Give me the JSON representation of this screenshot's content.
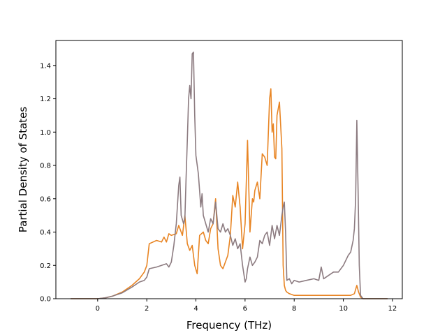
{
  "chart_data": {
    "type": "line",
    "title": "",
    "xlabel": "Frequency (THz)",
    "ylabel": "Partial Density of States",
    "xlim": [
      -1.7,
      12.4
    ],
    "ylim": [
      0,
      1.55
    ],
    "xticks": [
      0,
      2,
      4,
      6,
      8,
      10,
      12
    ],
    "yticks": [
      0.0,
      0.2,
      0.4,
      0.6,
      0.8,
      1.0,
      1.2,
      1.4
    ],
    "xtick_labels": [
      "0",
      "2",
      "4",
      "6",
      "8",
      "10",
      "12"
    ],
    "ytick_labels": [
      "0.0",
      "0.2",
      "0.4",
      "0.6",
      "0.8",
      "1.0",
      "1.2",
      "1.4"
    ],
    "grid": false,
    "legend": null,
    "series": [
      {
        "color": "#e88524",
        "x": [
          -1.1,
          0,
          0.3,
          0.6,
          1.0,
          1.4,
          1.7,
          1.9,
          2.0,
          2.1,
          2.4,
          2.6,
          2.7,
          2.8,
          2.9,
          3.0,
          3.2,
          3.3,
          3.45,
          3.55,
          3.65,
          3.75,
          3.85,
          3.95,
          4.05,
          4.15,
          4.3,
          4.4,
          4.5,
          4.6,
          4.7,
          4.8,
          4.9,
          5.0,
          5.1,
          5.3,
          5.4,
          5.5,
          5.6,
          5.7,
          5.8,
          5.9,
          6.0,
          6.1,
          6.2,
          6.3,
          6.35,
          6.4,
          6.5,
          6.6,
          6.7,
          6.8,
          6.9,
          7.0,
          7.05,
          7.1,
          7.15,
          7.2,
          7.25,
          7.3,
          7.4,
          7.5,
          7.55,
          7.6,
          7.65,
          7.7,
          7.8,
          7.9,
          8.0,
          8.1,
          8.5,
          9.0,
          9.5,
          10.0,
          10.3,
          10.45,
          10.55,
          10.62,
          10.7,
          10.8,
          11.8
        ],
        "y": [
          0.0,
          0.0,
          0.005,
          0.015,
          0.04,
          0.08,
          0.12,
          0.16,
          0.2,
          0.33,
          0.35,
          0.34,
          0.37,
          0.34,
          0.39,
          0.38,
          0.39,
          0.44,
          0.38,
          0.5,
          0.33,
          0.29,
          0.32,
          0.2,
          0.15,
          0.38,
          0.4,
          0.35,
          0.33,
          0.42,
          0.45,
          0.6,
          0.3,
          0.2,
          0.18,
          0.26,
          0.38,
          0.62,
          0.55,
          0.7,
          0.55,
          0.3,
          0.45,
          0.95,
          0.4,
          0.6,
          0.58,
          0.65,
          0.7,
          0.6,
          0.87,
          0.85,
          0.8,
          1.2,
          1.26,
          1.0,
          1.05,
          0.85,
          0.84,
          1.1,
          1.18,
          0.9,
          0.2,
          0.08,
          0.05,
          0.04,
          0.03,
          0.025,
          0.02,
          0.02,
          0.02,
          0.02,
          0.02,
          0.02,
          0.02,
          0.03,
          0.08,
          0.04,
          0.01,
          0.0,
          0.0
        ]
      },
      {
        "color": "#8c7b80",
        "x": [
          -1.1,
          0,
          0.3,
          0.6,
          1.0,
          1.4,
          1.7,
          1.9,
          2.0,
          2.1,
          2.4,
          2.6,
          2.8,
          2.9,
          3.0,
          3.1,
          3.2,
          3.3,
          3.35,
          3.4,
          3.5,
          3.55,
          3.6,
          3.65,
          3.7,
          3.75,
          3.8,
          3.85,
          3.9,
          3.95,
          4.0,
          4.1,
          4.2,
          4.25,
          4.3,
          4.4,
          4.5,
          4.6,
          4.7,
          4.8,
          4.9,
          5.0,
          5.1,
          5.2,
          5.3,
          5.4,
          5.5,
          5.6,
          5.7,
          5.8,
          5.9,
          6.0,
          6.05,
          6.1,
          6.2,
          6.3,
          6.4,
          6.5,
          6.6,
          6.7,
          6.8,
          6.9,
          7.0,
          7.1,
          7.2,
          7.3,
          7.4,
          7.5,
          7.55,
          7.6,
          7.65,
          7.7,
          7.8,
          7.9,
          8.0,
          8.2,
          8.5,
          8.8,
          9.0,
          9.1,
          9.2,
          9.4,
          9.6,
          9.8,
          10.0,
          10.2,
          10.3,
          10.4,
          10.45,
          10.5,
          10.55,
          10.6,
          10.65,
          10.7,
          10.8,
          11.8
        ],
        "y": [
          0.0,
          0.0,
          0.005,
          0.015,
          0.035,
          0.07,
          0.1,
          0.11,
          0.13,
          0.18,
          0.19,
          0.2,
          0.21,
          0.19,
          0.22,
          0.32,
          0.45,
          0.68,
          0.73,
          0.5,
          0.45,
          0.48,
          0.72,
          0.95,
          1.2,
          1.28,
          1.2,
          1.47,
          1.48,
          1.1,
          0.86,
          0.75,
          0.55,
          0.63,
          0.5,
          0.45,
          0.4,
          0.48,
          0.45,
          0.58,
          0.42,
          0.4,
          0.45,
          0.4,
          0.42,
          0.38,
          0.32,
          0.36,
          0.3,
          0.33,
          0.2,
          0.1,
          0.12,
          0.18,
          0.25,
          0.2,
          0.22,
          0.25,
          0.35,
          0.33,
          0.38,
          0.4,
          0.32,
          0.44,
          0.36,
          0.44,
          0.38,
          0.5,
          0.55,
          0.58,
          0.4,
          0.11,
          0.12,
          0.09,
          0.11,
          0.1,
          0.11,
          0.12,
          0.11,
          0.19,
          0.12,
          0.14,
          0.16,
          0.16,
          0.2,
          0.26,
          0.28,
          0.35,
          0.42,
          0.6,
          1.07,
          0.65,
          0.2,
          0.02,
          0.0,
          0.0
        ]
      }
    ]
  }
}
